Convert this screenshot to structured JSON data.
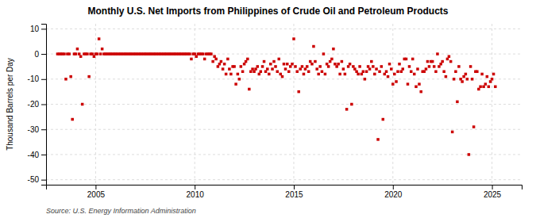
{
  "chart_data": {
    "type": "scatter",
    "title": "Monthly U.S. Net Imports from Philippines of Crude Oil and Petroleum Products",
    "y_label": "Thousand Barrels per Day",
    "source": "Source: U.S. Energy Information Administration",
    "color": "#CC0000",
    "marker": "square",
    "grid": true,
    "xlim": [
      2002.5,
      2026.5
    ],
    "ylim": [
      -52,
      12
    ],
    "xticks": [
      2005,
      2010,
      2015,
      2020,
      2025
    ],
    "yticks": [
      -50,
      -40,
      -30,
      -20,
      -10,
      0,
      10
    ],
    "x": [
      2003.08,
      2003.17,
      2003.25,
      2003.33,
      2003.42,
      2003.5,
      2003.58,
      2003.67,
      2003.75,
      2003.83,
      2003.92,
      2004.0,
      2004.08,
      2004.17,
      2004.25,
      2004.33,
      2004.42,
      2004.5,
      2004.58,
      2004.67,
      2004.75,
      2004.83,
      2004.92,
      2005.0,
      2005.08,
      2005.17,
      2005.25,
      2005.33,
      2005.42,
      2005.5,
      2005.58,
      2005.67,
      2005.75,
      2005.83,
      2005.92,
      2006.0,
      2006.08,
      2006.17,
      2006.25,
      2006.33,
      2006.42,
      2006.5,
      2006.58,
      2006.67,
      2006.75,
      2006.83,
      2006.92,
      2007.0,
      2007.08,
      2007.17,
      2007.25,
      2007.33,
      2007.42,
      2007.5,
      2007.58,
      2007.67,
      2007.75,
      2007.83,
      2007.92,
      2008.0,
      2008.08,
      2008.17,
      2008.25,
      2008.33,
      2008.42,
      2008.5,
      2008.58,
      2008.67,
      2008.75,
      2008.83,
      2008.92,
      2009.0,
      2009.08,
      2009.17,
      2009.25,
      2009.33,
      2009.42,
      2009.5,
      2009.58,
      2009.67,
      2009.75,
      2009.83,
      2009.92,
      2010.0,
      2010.08,
      2010.17,
      2010.25,
      2010.33,
      2010.42,
      2010.5,
      2010.58,
      2010.67,
      2010.75,
      2010.83,
      2010.92,
      2011.0,
      2011.08,
      2011.17,
      2011.25,
      2011.33,
      2011.42,
      2011.5,
      2011.58,
      2011.67,
      2011.75,
      2011.83,
      2011.92,
      2012.0,
      2012.08,
      2012.17,
      2012.25,
      2012.33,
      2012.42,
      2012.5,
      2012.58,
      2012.67,
      2012.75,
      2012.83,
      2012.92,
      2013.0,
      2013.08,
      2013.17,
      2013.25,
      2013.33,
      2013.42,
      2013.5,
      2013.58,
      2013.67,
      2013.75,
      2013.83,
      2013.92,
      2014.0,
      2014.08,
      2014.17,
      2014.25,
      2014.33,
      2014.42,
      2014.5,
      2014.58,
      2014.67,
      2014.75,
      2014.83,
      2014.92,
      2015.0,
      2015.08,
      2015.17,
      2015.25,
      2015.33,
      2015.42,
      2015.5,
      2015.58,
      2015.67,
      2015.75,
      2015.83,
      2015.92,
      2016.0,
      2016.08,
      2016.17,
      2016.25,
      2016.33,
      2016.42,
      2016.5,
      2016.58,
      2016.67,
      2016.75,
      2016.83,
      2016.92,
      2017.0,
      2017.08,
      2017.17,
      2017.25,
      2017.33,
      2017.42,
      2017.5,
      2017.58,
      2017.67,
      2017.75,
      2017.83,
      2017.92,
      2018.0,
      2018.08,
      2018.17,
      2018.25,
      2018.33,
      2018.42,
      2018.5,
      2018.58,
      2018.67,
      2018.75,
      2018.83,
      2018.92,
      2019.0,
      2019.08,
      2019.17,
      2019.25,
      2019.33,
      2019.42,
      2019.5,
      2019.58,
      2019.67,
      2019.75,
      2019.83,
      2019.92,
      2020.0,
      2020.08,
      2020.17,
      2020.25,
      2020.33,
      2020.42,
      2020.5,
      2020.58,
      2020.67,
      2020.75,
      2020.83,
      2020.92,
      2021.0,
      2021.08,
      2021.17,
      2021.25,
      2021.33,
      2021.42,
      2021.5,
      2021.58,
      2021.67,
      2021.75,
      2021.83,
      2021.92,
      2022.0,
      2022.08,
      2022.17,
      2022.25,
      2022.33,
      2022.42,
      2022.5,
      2022.58,
      2022.67,
      2022.75,
      2022.83,
      2022.92,
      2023.0,
      2023.08,
      2023.17,
      2023.25,
      2023.33,
      2023.42,
      2023.5,
      2023.58,
      2023.67,
      2023.75,
      2023.83,
      2023.92,
      2024.0,
      2024.08,
      2024.17,
      2024.25,
      2024.33,
      2024.42,
      2024.5,
      2024.58,
      2024.67,
      2024.75,
      2024.83,
      2024.92,
      2025.0,
      2025.08,
      2025.17
    ],
    "values": [
      0,
      0,
      0,
      0,
      0,
      -10,
      0,
      0,
      -9,
      -26,
      0,
      0,
      2,
      0,
      -1,
      -20,
      0,
      0,
      0,
      -9,
      0,
      0,
      -1,
      0,
      0,
      6,
      0,
      2,
      0,
      0,
      0,
      0,
      0,
      0,
      0,
      0,
      0,
      0,
      0,
      0,
      0,
      0,
      0,
      0,
      0,
      0,
      0,
      0,
      0,
      0,
      0,
      0,
      0,
      0,
      0,
      0,
      0,
      0,
      0,
      0,
      0,
      0,
      0,
      0,
      0,
      0,
      0,
      0,
      0,
      0,
      0,
      0,
      0,
      0,
      0,
      0,
      0,
      0,
      0,
      0,
      0,
      -2,
      0,
      0,
      -1,
      0,
      0,
      0,
      0,
      -2,
      0,
      0,
      0,
      0,
      -3,
      -1,
      -2,
      -5,
      -4,
      -3,
      -6,
      -4,
      -8,
      -2,
      -6,
      -8,
      -5,
      -5,
      -12,
      -8,
      -10,
      -5,
      -7,
      -4,
      -3,
      -2,
      -14,
      -7,
      -6,
      -7,
      -6,
      -5,
      -8,
      -7,
      -5,
      -3,
      -7,
      -6,
      -8,
      -4,
      -6,
      -3,
      -5,
      -7,
      -2,
      -8,
      -9,
      -4,
      -6,
      -4,
      -7,
      -5,
      -4,
      6,
      -5,
      -7,
      -15,
      -6,
      -5,
      -8,
      -6,
      -5,
      -7,
      -3,
      -4,
      3,
      -3,
      -6,
      -8,
      -5,
      -7,
      0,
      -8,
      -4,
      -5,
      -3,
      -2,
      2,
      -4,
      -5,
      -4,
      -8,
      -3,
      -6,
      -8,
      -22,
      -5,
      -4,
      -20,
      -5,
      -6,
      -7,
      -8,
      -5,
      -8,
      -7,
      -10,
      -7,
      -5,
      -6,
      -3,
      -5,
      -8,
      -6,
      -34,
      -7,
      -5,
      -26,
      -8,
      -7,
      -9,
      -4,
      -6,
      -12,
      -8,
      -11,
      -7,
      -4,
      -7,
      -6,
      -2,
      -2,
      -12,
      -5,
      -7,
      -2,
      -8,
      -13,
      -6,
      -12,
      -15,
      -7,
      -7,
      -6,
      -3,
      -5,
      -3,
      -3,
      -5,
      -7,
      0,
      -5,
      -4,
      -3,
      -7,
      -9,
      -2,
      -1,
      -3,
      -31,
      -10,
      -7,
      -19,
      -5,
      -10,
      -11,
      -9,
      -8,
      -10,
      -40,
      -5,
      -10,
      -29,
      -7,
      -7,
      -14,
      -13,
      -8,
      -13,
      -12,
      -9,
      -13,
      -11,
      -10,
      -8,
      -13
    ]
  }
}
